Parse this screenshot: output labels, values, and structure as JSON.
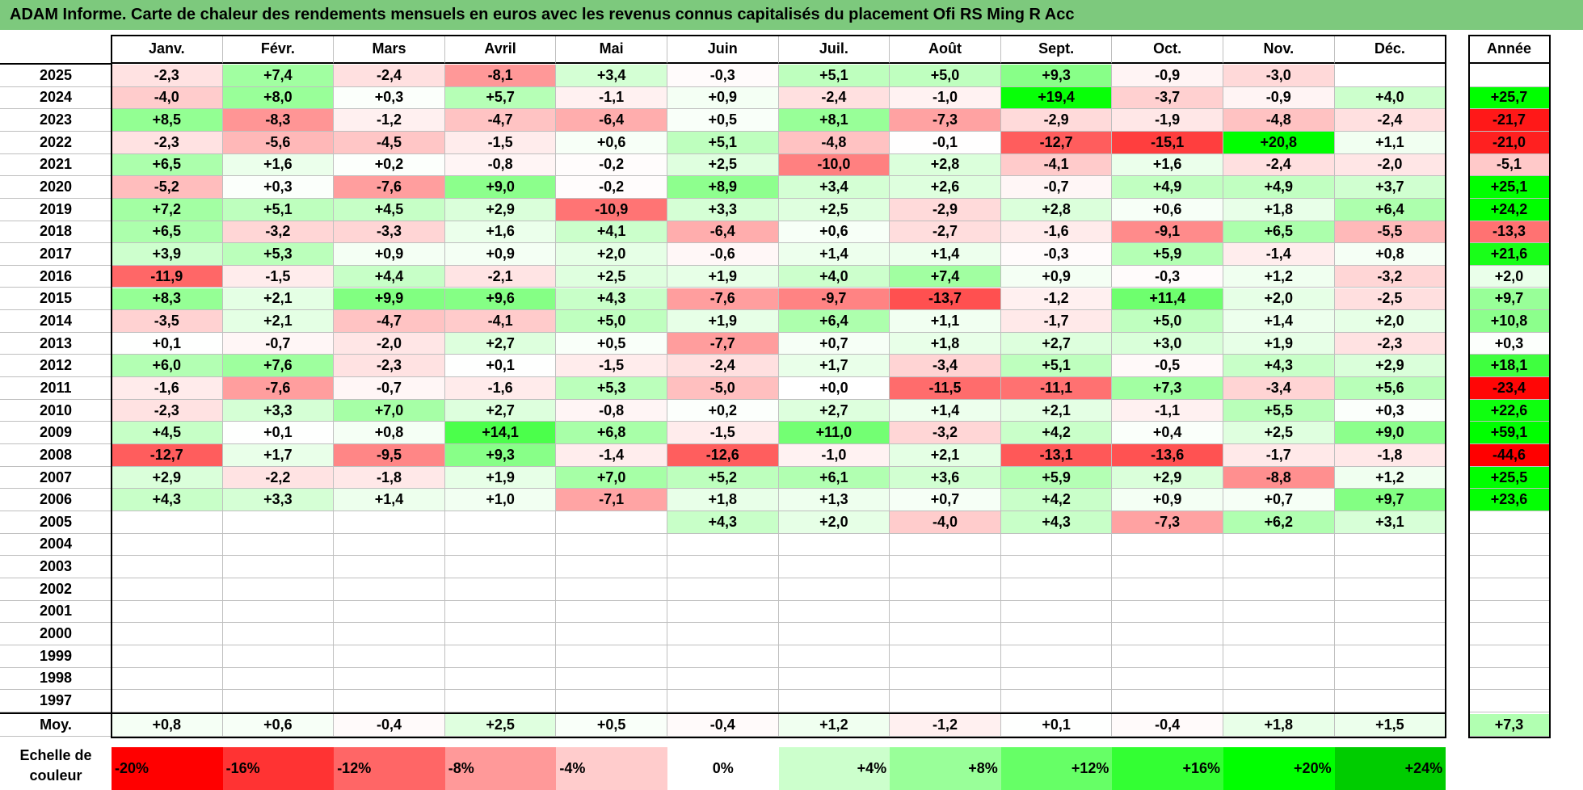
{
  "title": "ADAM Informe. Carte de chaleur des rendements mensuels en euros avec les revenus connus capitalisés du placement Ofi RS Ming R Acc",
  "chart_data": {
    "type": "heatmap",
    "columns": [
      "Janv.",
      "Févr.",
      "Mars",
      "Avril",
      "Mai",
      "Juin",
      "Juil.",
      "Août",
      "Sept.",
      "Oct.",
      "Nov.",
      "Déc."
    ],
    "year_header": "Année",
    "rows": [
      {
        "year": "2025",
        "months": [
          "-2,3",
          "+7,4",
          "-2,4",
          "-8,1",
          "+3,4",
          "-0,3",
          "+5,1",
          "+5,0",
          "+9,3",
          "-0,9",
          "-3,0",
          ""
        ],
        "annual": ""
      },
      {
        "year": "2024",
        "months": [
          "-4,0",
          "+8,0",
          "+0,3",
          "+5,7",
          "-1,1",
          "+0,9",
          "-2,4",
          "-1,0",
          "+19,4",
          "-3,7",
          "-0,9",
          "+4,0"
        ],
        "annual": "+25,7"
      },
      {
        "year": "2023",
        "months": [
          "+8,5",
          "-8,3",
          "-1,2",
          "-4,7",
          "-6,4",
          "+0,5",
          "+8,1",
          "-7,3",
          "-2,9",
          "-1,9",
          "-4,8",
          "-2,4"
        ],
        "annual": "-21,7"
      },
      {
        "year": "2022",
        "months": [
          "-2,3",
          "-5,6",
          "-4,5",
          "-1,5",
          "+0,6",
          "+5,1",
          "-4,8",
          "-0,1",
          "-12,7",
          "-15,1",
          "+20,8",
          "+1,1"
        ],
        "annual": "-21,0"
      },
      {
        "year": "2021",
        "months": [
          "+6,5",
          "+1,6",
          "+0,2",
          "-0,8",
          "-0,2",
          "+2,5",
          "-10,0",
          "+2,8",
          "-4,1",
          "+1,6",
          "-2,4",
          "-2,0"
        ],
        "annual": "-5,1"
      },
      {
        "year": "2020",
        "months": [
          "-5,2",
          "+0,3",
          "-7,6",
          "+9,0",
          "-0,2",
          "+8,9",
          "+3,4",
          "+2,6",
          "-0,7",
          "+4,9",
          "+4,9",
          "+3,7"
        ],
        "annual": "+25,1"
      },
      {
        "year": "2019",
        "months": [
          "+7,2",
          "+5,1",
          "+4,5",
          "+2,9",
          "-10,9",
          "+3,3",
          "+2,5",
          "-2,9",
          "+2,8",
          "+0,6",
          "+1,8",
          "+6,4"
        ],
        "annual": "+24,2"
      },
      {
        "year": "2018",
        "months": [
          "+6,5",
          "-3,2",
          "-3,3",
          "+1,6",
          "+4,1",
          "-6,4",
          "+0,6",
          "-2,7",
          "-1,6",
          "-9,1",
          "+6,5",
          "-5,5"
        ],
        "annual": "-13,3"
      },
      {
        "year": "2017",
        "months": [
          "+3,9",
          "+5,3",
          "+0,9",
          "+0,9",
          "+2,0",
          "-0,6",
          "+1,4",
          "+1,4",
          "-0,3",
          "+5,9",
          "-1,4",
          "+0,8"
        ],
        "annual": "+21,6"
      },
      {
        "year": "2016",
        "months": [
          "-11,9",
          "-1,5",
          "+4,4",
          "-2,1",
          "+2,5",
          "+1,9",
          "+4,0",
          "+7,4",
          "+0,9",
          "-0,3",
          "+1,2",
          "-3,2"
        ],
        "annual": "+2,0"
      },
      {
        "year": "2015",
        "months": [
          "+8,3",
          "+2,1",
          "+9,9",
          "+9,6",
          "+4,3",
          "-7,6",
          "-9,7",
          "-13,7",
          "-1,2",
          "+11,4",
          "+2,0",
          "-2,5"
        ],
        "annual": "+9,7"
      },
      {
        "year": "2014",
        "months": [
          "-3,5",
          "+2,1",
          "-4,7",
          "-4,1",
          "+5,0",
          "+1,9",
          "+6,4",
          "+1,1",
          "-1,7",
          "+5,0",
          "+1,4",
          "+2,0"
        ],
        "annual": "+10,8"
      },
      {
        "year": "2013",
        "months": [
          "+0,1",
          "-0,7",
          "-2,0",
          "+2,7",
          "+0,5",
          "-7,7",
          "+0,7",
          "+1,8",
          "+2,7",
          "+3,0",
          "+1,9",
          "-2,3"
        ],
        "annual": "+0,3"
      },
      {
        "year": "2012",
        "months": [
          "+6,0",
          "+7,6",
          "-2,3",
          "+0,1",
          "-1,5",
          "-2,4",
          "+1,7",
          "-3,4",
          "+5,1",
          "-0,5",
          "+4,3",
          "+2,9"
        ],
        "annual": "+18,1"
      },
      {
        "year": "2011",
        "months": [
          "-1,6",
          "-7,6",
          "-0,7",
          "-1,6",
          "+5,3",
          "-5,0",
          "+0,0",
          "-11,5",
          "-11,1",
          "+7,3",
          "-3,4",
          "+5,6"
        ],
        "annual": "-23,4"
      },
      {
        "year": "2010",
        "months": [
          "-2,3",
          "+3,3",
          "+7,0",
          "+2,7",
          "-0,8",
          "+0,2",
          "+2,7",
          "+1,4",
          "+2,1",
          "-1,1",
          "+5,5",
          "+0,3"
        ],
        "annual": "+22,6"
      },
      {
        "year": "2009",
        "months": [
          "+4,5",
          "+0,1",
          "+0,8",
          "+14,1",
          "+6,8",
          "-1,5",
          "+11,0",
          "-3,2",
          "+4,2",
          "+0,4",
          "+2,5",
          "+9,0"
        ],
        "annual": "+59,1"
      },
      {
        "year": "2008",
        "months": [
          "-12,7",
          "+1,7",
          "-9,5",
          "+9,3",
          "-1,4",
          "-12,6",
          "-1,0",
          "+2,1",
          "-13,1",
          "-13,6",
          "-1,7",
          "-1,8"
        ],
        "annual": "-44,6"
      },
      {
        "year": "2007",
        "months": [
          "+2,9",
          "-2,2",
          "-1,8",
          "+1,9",
          "+7,0",
          "+5,2",
          "+6,1",
          "+3,6",
          "+5,9",
          "+2,9",
          "-8,8",
          "+1,2"
        ],
        "annual": "+25,5"
      },
      {
        "year": "2006",
        "months": [
          "+4,3",
          "+3,3",
          "+1,4",
          "+1,0",
          "-7,1",
          "+1,8",
          "+1,3",
          "+0,7",
          "+4,2",
          "+0,9",
          "+0,7",
          "+9,7"
        ],
        "annual": "+23,6"
      },
      {
        "year": "2005",
        "months": [
          "",
          "",
          "",
          "",
          "",
          "+4,3",
          "+2,0",
          "-4,0",
          "+4,3",
          "-7,3",
          "+6,2",
          "+3,1"
        ],
        "annual": ""
      },
      {
        "year": "2004",
        "months": [
          "",
          "",
          "",
          "",
          "",
          "",
          "",
          "",
          "",
          "",
          "",
          ""
        ],
        "annual": ""
      },
      {
        "year": "2003",
        "months": [
          "",
          "",
          "",
          "",
          "",
          "",
          "",
          "",
          "",
          "",
          "",
          ""
        ],
        "annual": ""
      },
      {
        "year": "2002",
        "months": [
          "",
          "",
          "",
          "",
          "",
          "",
          "",
          "",
          "",
          "",
          "",
          ""
        ],
        "annual": ""
      },
      {
        "year": "2001",
        "months": [
          "",
          "",
          "",
          "",
          "",
          "",
          "",
          "",
          "",
          "",
          "",
          ""
        ],
        "annual": ""
      },
      {
        "year": "2000",
        "months": [
          "",
          "",
          "",
          "",
          "",
          "",
          "",
          "",
          "",
          "",
          "",
          ""
        ],
        "annual": ""
      },
      {
        "year": "1999",
        "months": [
          "",
          "",
          "",
          "",
          "",
          "",
          "",
          "",
          "",
          "",
          "",
          ""
        ],
        "annual": ""
      },
      {
        "year": "1998",
        "months": [
          "",
          "",
          "",
          "",
          "",
          "",
          "",
          "",
          "",
          "",
          "",
          ""
        ],
        "annual": ""
      },
      {
        "year": "1997",
        "months": [
          "",
          "",
          "",
          "",
          "",
          "",
          "",
          "",
          "",
          "",
          "",
          ""
        ],
        "annual": ""
      }
    ],
    "average": {
      "label": "Moy.",
      "months": [
        "+0,8",
        "+0,6",
        "-0,4",
        "+2,5",
        "+0,5",
        "-0,4",
        "+1,2",
        "-1,2",
        "+0,1",
        "-0,4",
        "+1,8",
        "+1,5"
      ],
      "annual": "+7,3"
    },
    "scale": {
      "label": "Echelle de couleur",
      "steps": [
        {
          "label": "-20%",
          "value": -20,
          "color": "#ff0000"
        },
        {
          "label": "-16%",
          "value": -16,
          "color": "#ff3333"
        },
        {
          "label": "-12%",
          "value": -12,
          "color": "#ff6666"
        },
        {
          "label": "-8%",
          "value": -8,
          "color": "#ff9999"
        },
        {
          "label": "-4%",
          "value": -4,
          "color": "#ffcccc"
        },
        {
          "label": "0%",
          "value": 0,
          "color": "#ffffff"
        },
        {
          "label": "+4%",
          "value": 4,
          "color": "#ccffcc"
        },
        {
          "label": "+8%",
          "value": 8,
          "color": "#99ff99"
        },
        {
          "label": "+12%",
          "value": 12,
          "color": "#66ff66"
        },
        {
          "label": "+16%",
          "value": 16,
          "color": "#33ff33"
        },
        {
          "label": "+20%",
          "value": 20,
          "color": "#00ff00"
        },
        {
          "label": "+24%",
          "value": 24,
          "color": "#00cc00"
        }
      ]
    }
  }
}
